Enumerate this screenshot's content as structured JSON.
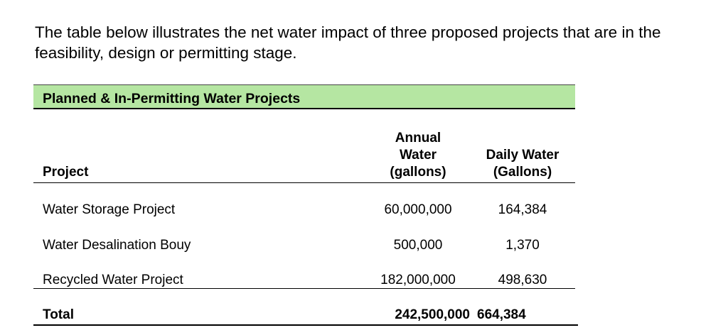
{
  "intro": "The table below illustrates the net water impact of three proposed projects that are in the feasibility, design or permitting stage.",
  "table": {
    "title": "Planned & In-Permitting Water Projects",
    "title_bg_color": "#b5e6a2",
    "columns": {
      "project": "Project",
      "annual_line1": "Annual",
      "annual_line2": "Water",
      "annual_line3": "(gallons)",
      "daily_line1": "Daily Water",
      "daily_line2": "(Gallons)"
    },
    "rows": [
      {
        "project": "Water Storage Project",
        "annual": "60,000,000",
        "daily": "164,384"
      },
      {
        "project": "Water Desalination Bouy",
        "annual": "500,000",
        "daily": "1,370"
      },
      {
        "project": "Recycled Water Project",
        "annual": "182,000,000",
        "daily": "498,630"
      }
    ],
    "total": {
      "label": "Total",
      "annual": "242,500,000",
      "daily": "664,384"
    }
  }
}
